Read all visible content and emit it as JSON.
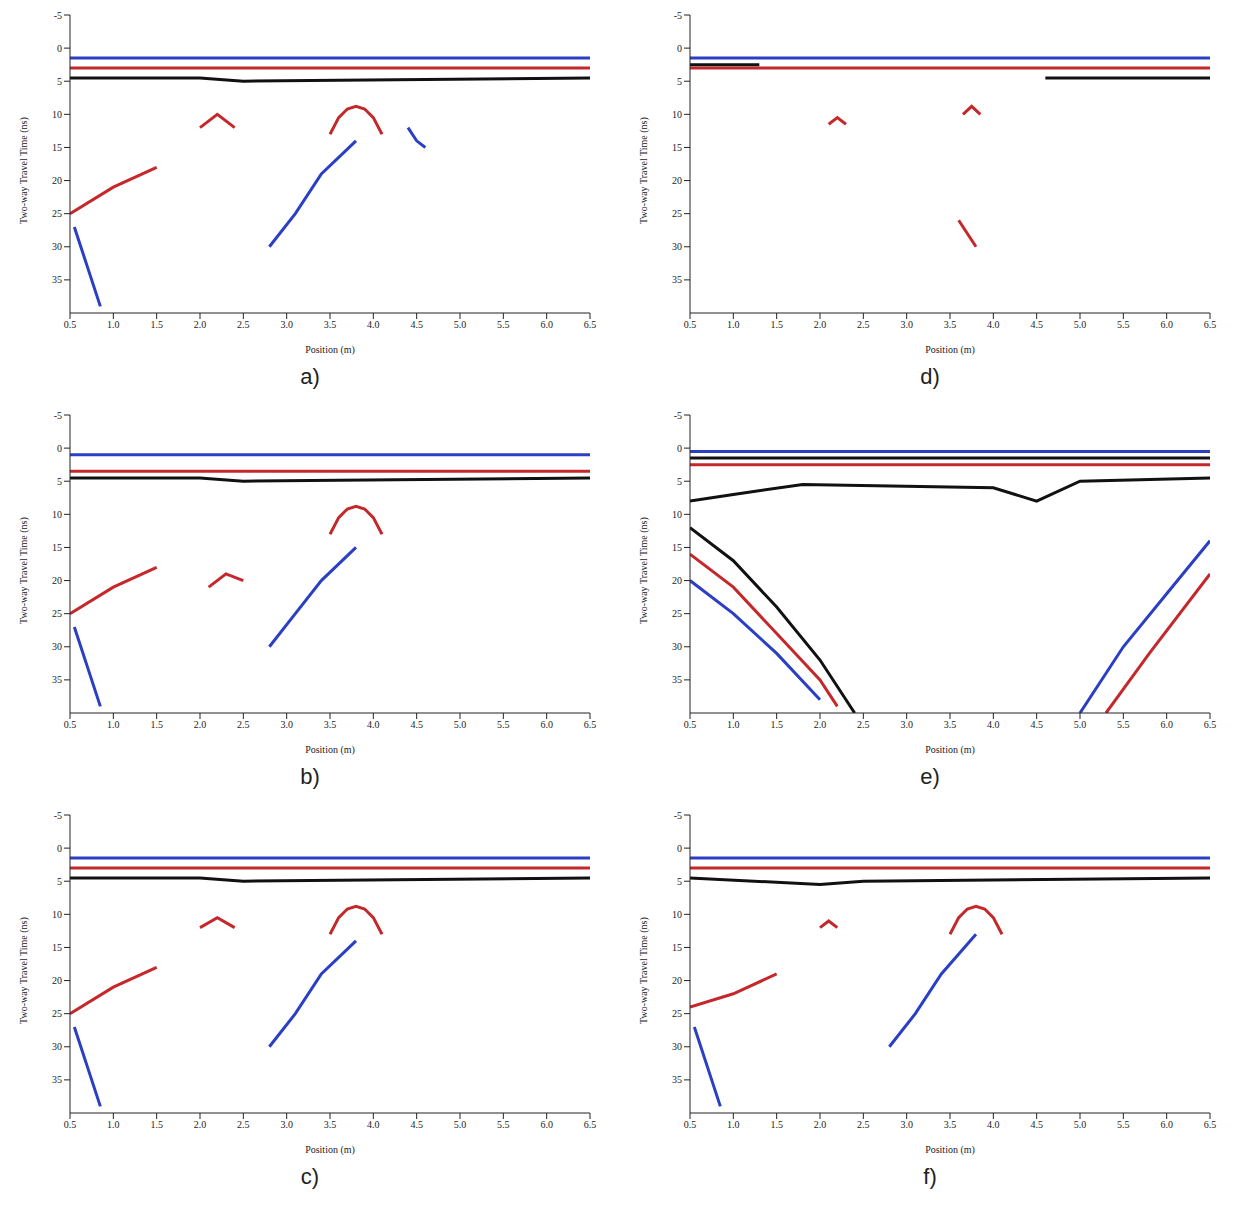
{
  "chart_data": [
    {
      "type": "line",
      "panel_label": "a)",
      "x_label": "Position (m)",
      "y_label": "Two-way Travel Time (ns)",
      "xlim": [
        0.5,
        6.5
      ],
      "xticks": [
        {
          "value": 0.5,
          "label": "0.5"
        },
        {
          "value": 1,
          "label": "1.0"
        },
        {
          "value": 1.5,
          "label": "1.5"
        },
        {
          "value": 2,
          "label": "2.0"
        },
        {
          "value": 2.5,
          "label": "2.5"
        },
        {
          "value": 3,
          "label": "3.0"
        },
        {
          "value": 3.5,
          "label": "3.5"
        },
        {
          "value": 4,
          "label": "4.0"
        },
        {
          "value": 4.5,
          "label": "4.5"
        },
        {
          "value": 5,
          "label": "5.0"
        },
        {
          "value": 5.5,
          "label": "5.5"
        },
        {
          "value": 6,
          "label": "6.0"
        },
        {
          "value": 6.5,
          "label": "6.5"
        }
      ],
      "ylim": [
        -5,
        40
      ],
      "yticks": [
        -5,
        0,
        5,
        10,
        15,
        20,
        25,
        30,
        35
      ],
      "series": [
        {
          "color": "#2b3fc4",
          "x": [
            0.5,
            6.5
          ],
          "values": [
            1.5,
            1.5
          ]
        },
        {
          "color": "#c4282b",
          "x": [
            0.5,
            6.5
          ],
          "values": [
            3,
            3
          ]
        },
        {
          "color": "#111111",
          "x": [
            0.5,
            2.0,
            2.5,
            6.5
          ],
          "values": [
            4.5,
            4.5,
            5,
            4.5
          ]
        },
        {
          "color": "#c4282b",
          "x": [
            3.5,
            3.6,
            3.7,
            3.8,
            3.9,
            4.0,
            4.1
          ],
          "values": [
            13,
            10.5,
            9.2,
            8.8,
            9.2,
            10.5,
            13
          ]
        },
        {
          "color": "#2b3fc4",
          "x": [
            2.8,
            3.1,
            3.4,
            3.8
          ],
          "values": [
            30,
            25,
            19,
            14
          ]
        },
        {
          "color": "#c4282b",
          "x": [
            0.5,
            1.0,
            1.5
          ],
          "values": [
            25,
            21,
            18
          ]
        },
        {
          "color": "#2b3fc4",
          "x": [
            0.55,
            0.7,
            0.85
          ],
          "values": [
            27,
            33,
            39
          ]
        },
        {
          "color": "#2b3fc4",
          "x": [
            4.4,
            4.5,
            4.6
          ],
          "values": [
            12,
            14,
            15
          ]
        },
        {
          "color": "#c4282b",
          "x": [
            2.0,
            2.2,
            2.4
          ],
          "values": [
            12,
            10,
            12
          ]
        }
      ]
    },
    {
      "type": "line",
      "panel_label": "b)",
      "x_label": "Position (m)",
      "y_label": "Two-way Travel Time (ns)",
      "xlim": [
        0.5,
        6.5
      ],
      "xticks": [
        {
          "value": 0.5,
          "label": "0.5"
        },
        {
          "value": 1,
          "label": "1.0"
        },
        {
          "value": 1.5,
          "label": "1.5"
        },
        {
          "value": 2,
          "label": "2.0"
        },
        {
          "value": 2.5,
          "label": "2.5"
        },
        {
          "value": 3,
          "label": "3.0"
        },
        {
          "value": 3.5,
          "label": "3.5"
        },
        {
          "value": 4,
          "label": "4.0"
        },
        {
          "value": 4.5,
          "label": "4.5"
        },
        {
          "value": 5,
          "label": "5.0"
        },
        {
          "value": 5.5,
          "label": "5.5"
        },
        {
          "value": 6,
          "label": "6.0"
        },
        {
          "value": 6.5,
          "label": "6.5"
        }
      ],
      "ylim": [
        -5,
        40
      ],
      "yticks": [
        -5,
        0,
        5,
        10,
        15,
        20,
        25,
        30,
        35
      ],
      "series": [
        {
          "color": "#2b3fc4",
          "x": [
            0.5,
            6.5
          ],
          "values": [
            1,
            1
          ]
        },
        {
          "color": "#c4282b",
          "x": [
            0.5,
            6.5
          ],
          "values": [
            3.5,
            3.5
          ]
        },
        {
          "color": "#111111",
          "x": [
            0.5,
            2.0,
            2.5,
            6.5
          ],
          "values": [
            4.5,
            4.5,
            5,
            4.5
          ]
        },
        {
          "color": "#c4282b",
          "x": [
            3.5,
            3.6,
            3.7,
            3.8,
            3.9,
            4.0,
            4.1
          ],
          "values": [
            13,
            10.5,
            9.2,
            8.8,
            9.2,
            10.5,
            13
          ]
        },
        {
          "color": "#2b3fc4",
          "x": [
            2.8,
            3.1,
            3.4,
            3.8
          ],
          "values": [
            30,
            25,
            20,
            15
          ]
        },
        {
          "color": "#c4282b",
          "x": [
            0.5,
            1.0,
            1.5
          ],
          "values": [
            25,
            21,
            18
          ]
        },
        {
          "color": "#2b3fc4",
          "x": [
            0.55,
            0.7,
            0.85
          ],
          "values": [
            27,
            33,
            39
          ]
        },
        {
          "color": "#c4282b",
          "x": [
            2.1,
            2.3,
            2.5
          ],
          "values": [
            21,
            19,
            20
          ]
        }
      ]
    },
    {
      "type": "line",
      "panel_label": "c)",
      "x_label": "Position (m)",
      "y_label": "Two-way Travel Time (ns)",
      "xlim": [
        0.5,
        6.5
      ],
      "xticks": [
        {
          "value": 0.5,
          "label": "0.5"
        },
        {
          "value": 1,
          "label": "1.0"
        },
        {
          "value": 1.5,
          "label": "1.5"
        },
        {
          "value": 2,
          "label": "2.0"
        },
        {
          "value": 2.5,
          "label": "2.5"
        },
        {
          "value": 3,
          "label": "3.0"
        },
        {
          "value": 3.5,
          "label": "3.5"
        },
        {
          "value": 4,
          "label": "4.0"
        },
        {
          "value": 4.5,
          "label": "4.5"
        },
        {
          "value": 5,
          "label": "5.0"
        },
        {
          "value": 5.5,
          "label": "5.5"
        },
        {
          "value": 6,
          "label": "6.0"
        },
        {
          "value": 6.5,
          "label": "6.5"
        }
      ],
      "ylim": [
        -5,
        40
      ],
      "yticks": [
        -5,
        0,
        5,
        10,
        15,
        20,
        25,
        30,
        35
      ],
      "series": [
        {
          "color": "#2b3fc4",
          "x": [
            0.5,
            6.5
          ],
          "values": [
            1.5,
            1.5
          ]
        },
        {
          "color": "#c4282b",
          "x": [
            0.5,
            6.5
          ],
          "values": [
            3,
            3
          ]
        },
        {
          "color": "#111111",
          "x": [
            0.5,
            2.0,
            2.5,
            6.5
          ],
          "values": [
            4.5,
            4.5,
            5,
            4.5
          ]
        },
        {
          "color": "#c4282b",
          "x": [
            3.5,
            3.6,
            3.7,
            3.8,
            3.9,
            4.0,
            4.1
          ],
          "values": [
            13,
            10.5,
            9.2,
            8.8,
            9.2,
            10.5,
            13
          ]
        },
        {
          "color": "#2b3fc4",
          "x": [
            2.8,
            3.1,
            3.4,
            3.8
          ],
          "values": [
            30,
            25,
            19,
            14
          ]
        },
        {
          "color": "#c4282b",
          "x": [
            0.5,
            1.0,
            1.5
          ],
          "values": [
            25,
            21,
            18
          ]
        },
        {
          "color": "#2b3fc4",
          "x": [
            0.55,
            0.7,
            0.85
          ],
          "values": [
            27,
            33,
            39
          ]
        },
        {
          "color": "#c4282b",
          "x": [
            2.0,
            2.2,
            2.4
          ],
          "values": [
            12,
            10.5,
            12
          ]
        }
      ]
    },
    {
      "type": "line",
      "panel_label": "d)",
      "x_label": "Position (m)",
      "y_label": "Two-way Travel Time (ns)",
      "xlim": [
        0.5,
        6.5
      ],
      "xticks": [
        {
          "value": 0.5,
          "label": "0.5"
        },
        {
          "value": 1,
          "label": "1.0"
        },
        {
          "value": 1.5,
          "label": "1.5"
        },
        {
          "value": 2,
          "label": "2.0"
        },
        {
          "value": 2.5,
          "label": "2.5"
        },
        {
          "value": 3,
          "label": "3.0"
        },
        {
          "value": 3.5,
          "label": "3.5"
        },
        {
          "value": 4,
          "label": "4.0"
        },
        {
          "value": 4.5,
          "label": "4.5"
        },
        {
          "value": 5,
          "label": "5.0"
        },
        {
          "value": 5.5,
          "label": "5.5"
        },
        {
          "value": 6,
          "label": "6.0"
        },
        {
          "value": 6.5,
          "label": "6.5"
        }
      ],
      "ylim": [
        -5,
        40
      ],
      "yticks": [
        -5,
        0,
        5,
        10,
        15,
        20,
        25,
        30,
        35
      ],
      "series": [
        {
          "color": "#2b3fc4",
          "x": [
            0.5,
            6.5
          ],
          "values": [
            1.5,
            1.5
          ]
        },
        {
          "color": "#c4282b",
          "x": [
            0.5,
            6.5
          ],
          "values": [
            3,
            3
          ]
        },
        {
          "color": "#111111",
          "x": [
            0.5,
            1.3
          ],
          "values": [
            2.5,
            2.5
          ]
        },
        {
          "color": "#111111",
          "x": [
            4.6,
            6.5
          ],
          "values": [
            4.5,
            4.5
          ]
        },
        {
          "color": "#c4282b",
          "x": [
            3.65,
            3.75,
            3.85
          ],
          "values": [
            10,
            8.8,
            10
          ]
        },
        {
          "color": "#c4282b",
          "x": [
            2.1,
            2.2,
            2.3
          ],
          "values": [
            11.5,
            10.5,
            11.5
          ]
        },
        {
          "color": "#c4282b",
          "x": [
            3.6,
            3.7,
            3.8
          ],
          "values": [
            26,
            28,
            30
          ]
        }
      ]
    },
    {
      "type": "line",
      "panel_label": "e)",
      "x_label": "Position (m)",
      "y_label": "Two-way Travel Time (ns)",
      "xlim": [
        0.5,
        6.5
      ],
      "xticks": [
        {
          "value": 0.5,
          "label": "0.5"
        },
        {
          "value": 1,
          "label": "1.0"
        },
        {
          "value": 1.5,
          "label": "1.5"
        },
        {
          "value": 2,
          "label": "2.0"
        },
        {
          "value": 2.5,
          "label": "2.5"
        },
        {
          "value": 3,
          "label": "3.0"
        },
        {
          "value": 3.5,
          "label": "3.5"
        },
        {
          "value": 4,
          "label": "4.0"
        },
        {
          "value": 4.5,
          "label": "4.5"
        },
        {
          "value": 5,
          "label": "5.0"
        },
        {
          "value": 5.5,
          "label": "5.5"
        },
        {
          "value": 6,
          "label": "6.0"
        },
        {
          "value": 6.5,
          "label": "6.5"
        }
      ],
      "ylim": [
        -5,
        40
      ],
      "yticks": [
        -5,
        0,
        5,
        10,
        15,
        20,
        25,
        30,
        35
      ],
      "series": [
        {
          "color": "#2b3fc4",
          "x": [
            0.5,
            6.5
          ],
          "values": [
            0.5,
            0.5
          ]
        },
        {
          "color": "#111111",
          "x": [
            0.5,
            6.5
          ],
          "values": [
            1.5,
            1.5
          ]
        },
        {
          "color": "#c4282b",
          "x": [
            0.5,
            6.5
          ],
          "values": [
            2.5,
            2.5
          ]
        },
        {
          "color": "#111111",
          "x": [
            0.5,
            1.0,
            1.8,
            4.0,
            4.5,
            5.0,
            6.5
          ],
          "values": [
            8,
            7,
            5.5,
            6,
            8,
            5,
            4.5
          ]
        },
        {
          "color": "#111111",
          "x": [
            0.5,
            1.0,
            1.5,
            2.0,
            2.4
          ],
          "values": [
            12,
            17,
            24,
            32,
            40
          ]
        },
        {
          "color": "#c4282b",
          "x": [
            0.5,
            1.0,
            1.5,
            2.0,
            2.2
          ],
          "values": [
            16,
            21,
            28,
            35,
            39
          ]
        },
        {
          "color": "#2b3fc4",
          "x": [
            0.5,
            1.0,
            1.5,
            2.0
          ],
          "values": [
            20,
            25,
            31,
            38
          ]
        },
        {
          "color": "#2b3fc4",
          "x": [
            5.0,
            5.5,
            6.0,
            6.5
          ],
          "values": [
            40,
            30,
            22,
            14
          ]
        },
        {
          "color": "#c4282b",
          "x": [
            5.3,
            5.8,
            6.5
          ],
          "values": [
            40,
            31,
            19
          ]
        }
      ]
    },
    {
      "type": "line",
      "panel_label": "f)",
      "x_label": "Position (m)",
      "y_label": "Two-way Travel Time (ns)",
      "xlim": [
        0.5,
        6.5
      ],
      "xticks": [
        {
          "value": 0.5,
          "label": "0.5"
        },
        {
          "value": 1,
          "label": "1.0"
        },
        {
          "value": 1.5,
          "label": "1.5"
        },
        {
          "value": 2,
          "label": "2.0"
        },
        {
          "value": 2.5,
          "label": "2.5"
        },
        {
          "value": 3,
          "label": "3.0"
        },
        {
          "value": 3.5,
          "label": "3.5"
        },
        {
          "value": 4,
          "label": "4.0"
        },
        {
          "value": 4.5,
          "label": "4.5"
        },
        {
          "value": 5,
          "label": "5.0"
        },
        {
          "value": 5.5,
          "label": "5.5"
        },
        {
          "value": 6,
          "label": "6.0"
        },
        {
          "value": 6.5,
          "label": "6.5"
        }
      ],
      "ylim": [
        -5,
        40
      ],
      "yticks": [
        -5,
        0,
        5,
        10,
        15,
        20,
        25,
        30,
        35
      ],
      "series": [
        {
          "color": "#2b3fc4",
          "x": [
            0.5,
            6.5
          ],
          "values": [
            1.5,
            1.5
          ]
        },
        {
          "color": "#c4282b",
          "x": [
            0.5,
            6.5
          ],
          "values": [
            3,
            3
          ]
        },
        {
          "color": "#111111",
          "x": [
            0.5,
            2.0,
            2.5,
            6.5
          ],
          "values": [
            4.5,
            5.5,
            5,
            4.5
          ]
        },
        {
          "color": "#c4282b",
          "x": [
            3.5,
            3.6,
            3.7,
            3.8,
            3.9,
            4.0,
            4.1
          ],
          "values": [
            13,
            10.5,
            9.2,
            8.8,
            9.2,
            10.5,
            13
          ]
        },
        {
          "color": "#2b3fc4",
          "x": [
            2.8,
            3.1,
            3.4,
            3.8
          ],
          "values": [
            30,
            25,
            19,
            13
          ]
        },
        {
          "color": "#c4282b",
          "x": [
            0.5,
            1.0,
            1.5
          ],
          "values": [
            24,
            22,
            19
          ]
        },
        {
          "color": "#2b3fc4",
          "x": [
            0.55,
            0.7,
            0.85
          ],
          "values": [
            27,
            33,
            39
          ]
        },
        {
          "color": "#c4282b",
          "x": [
            2.0,
            2.1,
            2.2
          ],
          "values": [
            12,
            11,
            12
          ]
        }
      ]
    }
  ]
}
